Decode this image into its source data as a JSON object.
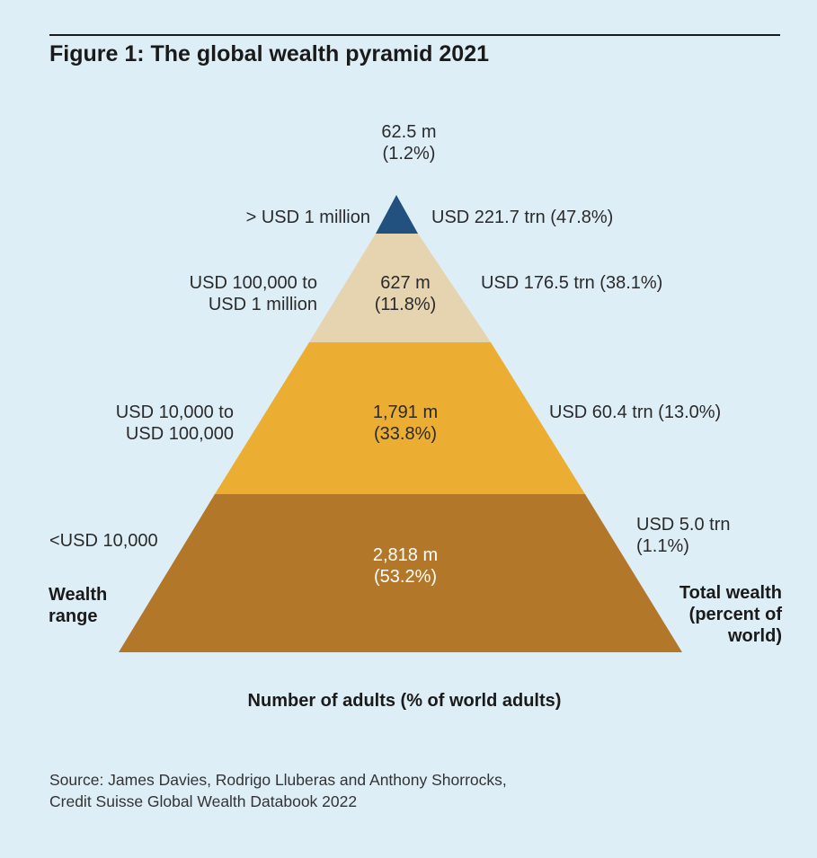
{
  "title": "Figure 1: The global wealth pyramid 2021",
  "tiers": [
    {
      "name": "top",
      "wealth_range": "> USD 1 million",
      "adults": "62.5 m",
      "adults_pct": "(1.2%)",
      "total_wealth": "USD 221.7 trn (47.8%)",
      "color": "#22507f"
    },
    {
      "name": "upper-middle",
      "wealth_range_line1": "USD 100,000 to",
      "wealth_range_line2": "USD 1 million",
      "adults": "627 m",
      "adults_pct": "(11.8%)",
      "total_wealth": "USD 176.5 trn (38.1%)",
      "color": "#e6d3b0"
    },
    {
      "name": "middle",
      "wealth_range_line1": "USD 10,000 to",
      "wealth_range_line2": "USD 100,000",
      "adults": "1,791 m",
      "adults_pct": "(33.8%)",
      "total_wealth": "USD 60.4 trn (13.0%)",
      "color": "#ebae33"
    },
    {
      "name": "base",
      "wealth_range": "<USD 10,000",
      "adults": "2,818 m",
      "adults_pct": "(53.2%)",
      "total_wealth_line1": "USD 5.0 trn",
      "total_wealth_line2": "(1.1%)",
      "color": "#b3772a"
    }
  ],
  "axis_labels": {
    "left_line1": "Wealth",
    "left_line2": "range",
    "right_line1": "Total wealth",
    "right_line2": "(percent of",
    "right_line3": "world)",
    "bottom": "Number of adults (% of world adults)"
  },
  "source_line1": "Source: James Davies, Rodrigo Lluberas and Anthony Shorrocks,",
  "source_line2": "Credit Suisse Global Wealth Databook 2022"
}
